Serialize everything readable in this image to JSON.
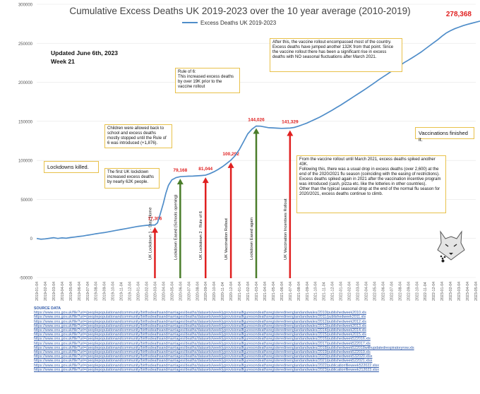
{
  "chart_data": {
    "type": "line",
    "title": "Cumulative Excess Deaths UK 2019-2023 over the 10 year average (2010-2019)",
    "series": [
      {
        "name": "Excess Deaths UK 2019-2023",
        "color": "#4f8dc9"
      }
    ],
    "final_value_label": "278,368",
    "y_ticks": [
      -50000,
      0,
      50000,
      100000,
      150000,
      200000,
      250000,
      300000
    ],
    "y_tick_labels": [
      "-50000",
      "0",
      "50000",
      "100000",
      "150000",
      "200000",
      "250000",
      "300000"
    ],
    "ylim": [
      -50000,
      300000
    ],
    "x_labels": [
      "2019-01-04",
      "2019-02-04",
      "2019-03-04",
      "2019-04-04",
      "2019-05-04",
      "2019-06-04",
      "2019-07-04",
      "2019-08-04",
      "2019-09-04",
      "2019-10-04",
      "2019-11-04",
      "2019-12-04",
      "2020-01-04",
      "2020-02-04",
      "2020-03-04",
      "2020-04-04",
      "2020-05-04",
      "2020-06-04",
      "2020-07-04",
      "2020-08-04",
      "2020-09-04",
      "2020-10-04",
      "2020-11-04",
      "2020-12-04",
      "2021-01-04",
      "2021-02-04",
      "2021-03-04",
      "2021-04-04",
      "2021-05-04",
      "2021-06-04",
      "2021-07-04",
      "2021-08-04",
      "2021-09-04",
      "2021-10-04",
      "2021-11-04",
      "2021-12-04",
      "2022-01-04",
      "2022-02-04",
      "2022-03-04",
      "2022-04-04",
      "2022-05-04",
      "2022-06-04",
      "2022-07-04",
      "2022-08-04",
      "2022-09-04",
      "2022-10-04",
      "2022-11-04",
      "2022-12-04",
      "2023-01-04",
      "2023-02-04",
      "2023-03-04",
      "2023-04-04",
      "2023-05-04"
    ],
    "points": [
      [
        0,
        0
      ],
      [
        0.5,
        -1000
      ],
      [
        1,
        -500
      ],
      [
        1.5,
        200
      ],
      [
        2,
        1000
      ],
      [
        2.5,
        0
      ],
      [
        3,
        700
      ],
      [
        3.5,
        300
      ],
      [
        4,
        1200
      ],
      [
        4.5,
        1800
      ],
      [
        5,
        2500
      ],
      [
        5.5,
        3200
      ],
      [
        6,
        4200
      ],
      [
        6.5,
        5000
      ],
      [
        7,
        6000
      ],
      [
        7.5,
        6800
      ],
      [
        8,
        7500
      ],
      [
        8.5,
        8500
      ],
      [
        9,
        9500
      ],
      [
        9.5,
        10500
      ],
      [
        10,
        11500
      ],
      [
        10.5,
        12500
      ],
      [
        11,
        13500
      ],
      [
        11.5,
        14500
      ],
      [
        12,
        15500
      ],
      [
        12.5,
        16200
      ],
      [
        13,
        16800
      ],
      [
        13.5,
        17100
      ],
      [
        14,
        17306
      ],
      [
        14.3,
        20000
      ],
      [
        14.6,
        30000
      ],
      [
        15,
        45000
      ],
      [
        15.3,
        58000
      ],
      [
        15.6,
        68000
      ],
      [
        16,
        75000
      ],
      [
        16.5,
        78000
      ],
      [
        17,
        79168
      ],
      [
        17.5,
        79500
      ],
      [
        18,
        79800
      ],
      [
        18.5,
        79900
      ],
      [
        19,
        80200
      ],
      [
        19.5,
        80600
      ],
      [
        20,
        81044
      ],
      [
        20.5,
        83000
      ],
      [
        21,
        85500
      ],
      [
        21.5,
        88500
      ],
      [
        22,
        92000
      ],
      [
        22.5,
        96000
      ],
      [
        23,
        100292
      ],
      [
        23.5,
        106000
      ],
      [
        24,
        114000
      ],
      [
        24.5,
        124000
      ],
      [
        25,
        134000
      ],
      [
        25.5,
        140000
      ],
      [
        26,
        144026
      ],
      [
        26.5,
        143800
      ],
      [
        27,
        142800
      ],
      [
        27.5,
        141800
      ],
      [
        28,
        141600
      ],
      [
        28.5,
        141300
      ],
      [
        29,
        141000
      ],
      [
        29.5,
        141200
      ],
      [
        30,
        141329
      ],
      [
        30.5,
        142200
      ],
      [
        31,
        143800
      ],
      [
        31.5,
        145800
      ],
      [
        32,
        147800
      ],
      [
        32.5,
        150300
      ],
      [
        33,
        152800
      ],
      [
        33.5,
        155300
      ],
      [
        34,
        158300
      ],
      [
        34.5,
        161300
      ],
      [
        35,
        164300
      ],
      [
        35.5,
        167600
      ],
      [
        36,
        170800
      ],
      [
        36.5,
        174300
      ],
      [
        37,
        177800
      ],
      [
        37.5,
        181300
      ],
      [
        38,
        184800
      ],
      [
        38.5,
        188300
      ],
      [
        39,
        191800
      ],
      [
        39.5,
        195600
      ],
      [
        40,
        199300
      ],
      [
        40.5,
        203100
      ],
      [
        41,
        206800
      ],
      [
        41.5,
        210300
      ],
      [
        42,
        214100
      ],
      [
        42.5,
        217800
      ],
      [
        43,
        221300
      ],
      [
        43.5,
        225100
      ],
      [
        44,
        228300
      ],
      [
        44.5,
        231600
      ],
      [
        45,
        235100
      ],
      [
        45.5,
        238600
      ],
      [
        46,
        242600
      ],
      [
        46.5,
        246600
      ],
      [
        47,
        250600
      ],
      [
        47.5,
        254600
      ],
      [
        48,
        259100
      ],
      [
        48.5,
        263100
      ],
      [
        49,
        266100
      ],
      [
        49.5,
        268600
      ],
      [
        50,
        270600
      ],
      [
        50.5,
        272600
      ],
      [
        51,
        274100
      ],
      [
        51.5,
        275600
      ],
      [
        52,
        277000
      ],
      [
        52.5,
        278368
      ]
    ],
    "markers": [
      {
        "label": "UK Lockdown 1 - Stay Home",
        "x": 14,
        "value_label": "17,306",
        "color": "#e02020",
        "y": 17306
      },
      {
        "label": "Lockdown Eased (Schools opening)",
        "x": 17,
        "value_label": "79,168",
        "color": "#4a7d2a",
        "y": 79168
      },
      {
        "label": "UK Lockdown 2 - Rule of 6",
        "x": 20,
        "value_label": "81,044",
        "color": "#e02020",
        "y": 81044
      },
      {
        "label": "UK Vaccination Rollout",
        "x": 23,
        "value_label": "100,292",
        "color": "#e02020",
        "y": 100292
      },
      {
        "label": "Lockdown Eased again",
        "x": 26,
        "value_label": "144,026",
        "color": "#4a7d2a",
        "y": 144026
      },
      {
        "label": "UK Vaccination Incentives Rollout",
        "x": 30,
        "value_label": "141,329",
        "color": "#e02020",
        "y": 141329
      }
    ]
  },
  "annotations": {
    "updated": "Updated June 6th, 2023",
    "week": "Week 21",
    "after_rollout": "After this, the vaccine rollout encompassed most of the country. Excess deaths have jumped another 132K from that point. Since the vaccine rollout there has been a significant rise in excess deaths with NO seasonal fluctuations after March 2021.",
    "rule_of_6": "Rule of 6:\nThis increased excess deaths by over 19K prior to the vaccine rollout",
    "children": "Children were allowed back to school and excess deaths mostly stopped until the Rule of 6 was introduced (+1,876).",
    "first_lockdown": "The first UK lockdown increased excess deaths by nearly 62K people.",
    "lockdowns_killed": "Lockdowns killed.",
    "vaccinations_finished": "Vaccinations finished it.",
    "from_rollout": "From the vaccine rollout until March 2021, excess deaths spiked another 43K.\nFollowing this, there was a usual drop in excess deaths (over 2,600) at the end of the 2020/2021 flu season (coinciding with the easing of restrictions).\nExcess deaths spiked again in 2021 after the vaccination incentive program was introduced (cash, pizza etc. like the lotteries in other countries).\nOther than the typical seasonal drop at the end of the normal flu season for 2020/2021, excess deaths continue to climb."
  },
  "source": {
    "header": "SOURCE DATA",
    "links": [
      "https://www.ons.gov.uk/file?uri=/peoplepopulationandcommunity/birthsdeathsandmarriages/deaths/datasets/weeklyprovisionalfiguresondeathsregisteredinenglandandwales/2010/publishedweek2010.xls",
      "https://www.ons.gov.uk/file?uri=/peoplepopulationandcommunity/birthsdeathsandmarriages/deaths/datasets/weeklyprovisionalfiguresondeathsregisteredinenglandandwales/2011/publishedweek2011.xls",
      "https://www.ons.gov.uk/file?uri=/peoplepopulationandcommunity/birthsdeathsandmarriages/deaths/datasets/weeklyprovisionalfiguresondeathsregisteredinenglandandwales/2012/publishedweek2012.xls",
      "https://www.ons.gov.uk/file?uri=/peoplepopulationandcommunity/birthsdeathsandmarriages/deaths/datasets/weeklyprovisionalfiguresondeathsregisteredinenglandandwales/2013/publishedweek2013.xls",
      "https://www.ons.gov.uk/file?uri=/peoplepopulationandcommunity/birthsdeathsandmarriages/deaths/datasets/weeklyprovisionalfiguresondeathsregisteredinenglandandwales/2014/publishedweek2014.xls",
      "https://www.ons.gov.uk/file?uri=/peoplepopulationandcommunity/birthsdeathsandmarriages/deaths/datasets/weeklyprovisionalfiguresondeathsregisteredinenglandandwales/2015/publishedweek2015.xls",
      "https://www.ons.gov.uk/file?uri=/peoplepopulationandcommunity/birthsdeathsandmarriages/deaths/datasets/weeklyprovisionalfiguresondeathsregisteredinenglandandwales/2016/publishedweek522016.xls",
      "https://www.ons.gov.uk/file?uri=/peoplepopulationandcommunity/birthsdeathsandmarriages/deaths/datasets/weeklyprovisionalfiguresondeathsregisteredinenglandandwales/2017/publishedweek522017.xls",
      "https://www.ons.gov.uk/file?uri=/peoplepopulationandcommunity/birthsdeathsandmarriages/deaths/datasets/weeklyprovisionalfiguresondeathsregisteredinenglandandwales/2018/publishedweek522018withupdatedrespiratoryrow.xls",
      "https://www.ons.gov.uk/file?uri=/peoplepopulationandcommunity/birthsdeathsandmarriages/deaths/datasets/weeklyprovisionalfiguresondeathsregisteredinenglandandwales/2019/publishedweek522019.xls",
      "https://www.ons.gov.uk/file?uri=/peoplepopulationandcommunity/birthsdeathsandmarriages/deaths/datasets/weeklyprovisionalfiguresondeathsregisteredinenglandandwales/2020/publishedweek532020.xlsx",
      "https://www.ons.gov.uk/file?uri=/peoplepopulationandcommunity/birthsdeathsandmarriages/deaths/datasets/weeklyprovisionalfiguresondeathsregisteredinenglandandwales/2021/publishedweek522021.xlsx",
      "https://www.ons.gov.uk/file?uri=/peoplepopulationandcommunity/birthsdeathsandmarriages/deaths/datasets/weeklyprovisionalfiguresondeathsregisteredinenglandandwales/2022/publicationfileweek522022.xlsx",
      "https://www.ons.gov.uk/file?uri=/peoplepopulationandcommunity/birthsdeathsandmarriages/deaths/datasets/weeklyprovisionalfiguresondeathsregisteredinenglandandwales/2023/publicationfileweek212023.xlsx"
    ]
  }
}
